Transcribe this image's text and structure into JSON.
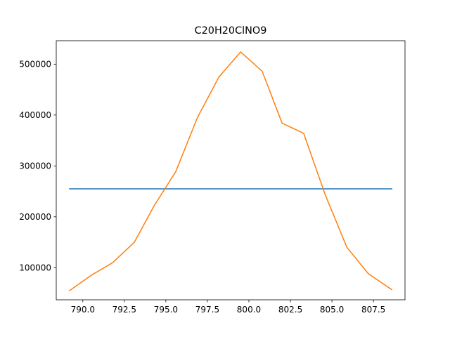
{
  "chart_data": {
    "type": "line",
    "title": "C20H20ClNO9",
    "xlabel": "",
    "ylabel": "",
    "xlim": [
      788.4,
      809.4
    ],
    "ylim": [
      37000,
      546000
    ],
    "xticks": [
      790.0,
      792.5,
      795.0,
      797.5,
      800.0,
      802.5,
      805.0,
      807.5
    ],
    "xtick_labels": [
      "790.0",
      "792.5",
      "795.0",
      "797.5",
      "800.0",
      "802.5",
      "805.0",
      "807.5"
    ],
    "yticks": [
      100000,
      200000,
      300000,
      400000,
      500000
    ],
    "ytick_labels": [
      "100000",
      "200000",
      "300000",
      "400000",
      "500000"
    ],
    "grid": false,
    "series": [
      {
        "color": "#1f77b4",
        "x": [
          789.2,
          808.6
        ],
        "y": [
          255000,
          255000
        ]
      },
      {
        "color": "#ff7f0e",
        "x": [
          789.2,
          790.5,
          791.8,
          793.1,
          794.3,
          795.6,
          796.9,
          798.2,
          799.5,
          800.8,
          802.0,
          803.3,
          804.6,
          805.9,
          807.2,
          808.6
        ],
        "y": [
          55000,
          85000,
          110000,
          150000,
          222000,
          289000,
          395000,
          475000,
          524000,
          486000,
          384000,
          364000,
          243000,
          140000,
          88000,
          57000
        ]
      }
    ]
  }
}
